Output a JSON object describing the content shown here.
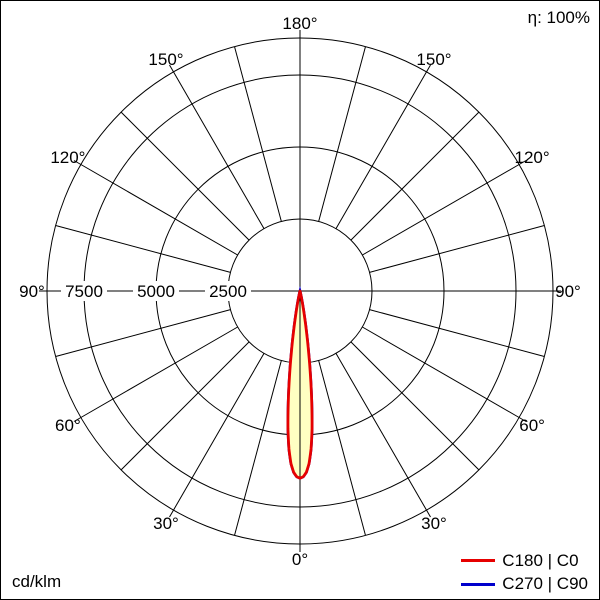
{
  "header": {
    "efficiency": "η: 100%"
  },
  "footer": {
    "unit": "cd/klm"
  },
  "legend": {
    "items": [
      {
        "label": "C180 | C0",
        "color": "#e60000"
      },
      {
        "label": "C270 | C90",
        "color": "#0000cc"
      }
    ]
  },
  "chart_data": {
    "type": "line",
    "coordinate_system": "polar",
    "units": "cd/klm",
    "radial_range": [
      0,
      8800
    ],
    "grid": {
      "ring_values": [
        2500,
        5000,
        7500
      ],
      "ring_labels": [
        "2500",
        "5000",
        "7500"
      ],
      "spoke_step_deg": 15,
      "angle_label_step_deg": 30,
      "angle_labels": [
        "0°",
        "30°",
        "60°",
        "90°",
        "120°",
        "150°",
        "180°"
      ]
    },
    "series": [
      {
        "name": "C270 | C90",
        "color": "#0000cc",
        "fill": "#ffffc2",
        "points": {
          "gamma_deg": [
            0,
            1,
            2,
            3,
            4,
            5,
            6,
            7,
            8,
            9,
            10,
            11,
            12,
            13,
            14,
            15,
            16,
            20,
            30,
            45,
            60,
            75,
            90,
            105,
            120,
            135,
            150,
            165,
            180
          ],
          "cd_per_klm": [
            6500,
            6450,
            6300,
            6000,
            5500,
            4800,
            3900,
            3000,
            2150,
            1450,
            900,
            520,
            280,
            140,
            60,
            20,
            0,
            0,
            0,
            0,
            0,
            0,
            0,
            0,
            0,
            0,
            0,
            0,
            0
          ]
        }
      },
      {
        "name": "C180 | C0",
        "color": "#e60000",
        "fill": "#ffffc2",
        "points": {
          "gamma_deg": [
            0,
            1,
            2,
            3,
            4,
            5,
            6,
            7,
            8,
            9,
            10,
            11,
            12,
            13,
            14,
            15,
            16,
            20,
            30,
            45,
            60,
            75,
            90,
            105,
            120,
            135,
            150,
            165,
            180
          ],
          "cd_per_klm": [
            6500,
            6450,
            6300,
            6000,
            5500,
            4800,
            3900,
            3000,
            2150,
            1450,
            900,
            520,
            280,
            140,
            60,
            20,
            0,
            0,
            0,
            0,
            0,
            0,
            0,
            0,
            0,
            0,
            0,
            0,
            0
          ]
        }
      }
    ]
  }
}
